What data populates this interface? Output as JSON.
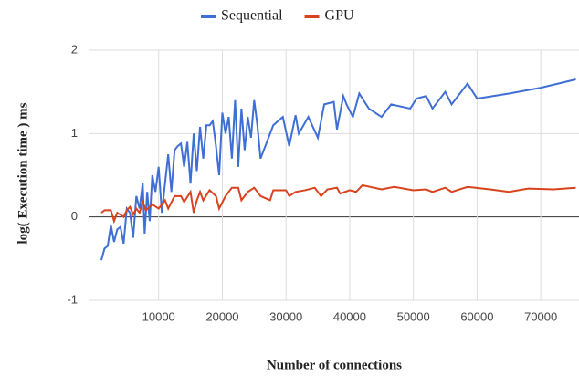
{
  "chart_data": {
    "type": "line",
    "x_label": "Number of connections",
    "y_label": "log( Execution time ) ms",
    "xlim": [
      -1000,
      76000
    ],
    "xticks": [
      10000,
      20000,
      30000,
      40000,
      50000,
      60000,
      70000
    ],
    "ylim": [
      -1,
      2
    ],
    "yticks": [
      -1,
      0,
      1,
      2
    ],
    "grid": true,
    "legend": "top",
    "series": [
      {
        "name": "Sequential",
        "color": "#3f6fd4",
        "x": [
          1000,
          1500,
          2000,
          2500,
          3000,
          3500,
          4000,
          4500,
          5000,
          5500,
          6000,
          6500,
          7000,
          7500,
          7800,
          8200,
          8600,
          9000,
          9500,
          10000,
          10500,
          11000,
          11500,
          12000,
          12500,
          13000,
          13500,
          14000,
          14500,
          15000,
          15500,
          16000,
          16500,
          17000,
          17500,
          18000,
          18500,
          19000,
          19500,
          20000,
          20500,
          21000,
          21500,
          22000,
          22500,
          23000,
          23500,
          24000,
          24500,
          25000,
          25500,
          26000,
          27000,
          28000,
          29500,
          30500,
          31500,
          32000,
          33500,
          35000,
          36000,
          37500,
          38000,
          39000,
          39500,
          40500,
          41500,
          43000,
          45000,
          46500,
          49500,
          50500,
          52000,
          53000,
          55000,
          56000,
          58500,
          60000,
          65000,
          70000,
          75500
        ],
        "values": [
          -0.52,
          -0.38,
          -0.35,
          -0.1,
          -0.3,
          -0.15,
          -0.12,
          -0.32,
          0.1,
          0.05,
          -0.25,
          0.25,
          0.1,
          0.4,
          -0.2,
          0.3,
          -0.05,
          0.5,
          0.3,
          0.6,
          0.05,
          0.4,
          0.75,
          0.3,
          0.8,
          0.85,
          0.88,
          0.6,
          0.9,
          0.4,
          1.0,
          0.55,
          1.08,
          0.7,
          1.1,
          1.1,
          1.15,
          0.85,
          0.5,
          1.25,
          1.0,
          1.2,
          0.7,
          1.4,
          0.6,
          1.3,
          0.8,
          1.2,
          0.95,
          1.4,
          1.1,
          0.7,
          0.9,
          1.1,
          1.2,
          0.85,
          1.22,
          1.0,
          1.2,
          0.95,
          1.35,
          1.38,
          1.05,
          1.45,
          1.35,
          1.2,
          1.48,
          1.3,
          1.2,
          1.35,
          1.3,
          1.42,
          1.45,
          1.3,
          1.5,
          1.35,
          1.6,
          1.42,
          1.48,
          1.55,
          1.65
        ]
      },
      {
        "name": "GPU",
        "color": "#d8431e",
        "x": [
          1000,
          1500,
          2500,
          3000,
          3500,
          4500,
          5000,
          5500,
          6000,
          6500,
          7000,
          7500,
          8000,
          9000,
          10000,
          11000,
          11500,
          12500,
          13500,
          14000,
          15000,
          15500,
          16000,
          16500,
          17000,
          18000,
          19000,
          19500,
          20500,
          21500,
          22500,
          23000,
          24000,
          25000,
          26000,
          27500,
          28000,
          30000,
          30500,
          31500,
          33000,
          34500,
          35500,
          36500,
          38000,
          38500,
          40000,
          41000,
          42000,
          45000,
          47000,
          50000,
          52000,
          53000,
          55000,
          56000,
          58500,
          62000,
          65000,
          68000,
          72000,
          75500
        ],
        "values": [
          0.05,
          0.08,
          0.08,
          -0.05,
          0.05,
          0.0,
          0.08,
          0.12,
          0.03,
          0.1,
          0.05,
          0.18,
          0.08,
          0.15,
          0.1,
          0.2,
          0.1,
          0.25,
          0.25,
          0.18,
          0.3,
          0.05,
          0.2,
          0.3,
          0.2,
          0.32,
          0.25,
          0.1,
          0.25,
          0.35,
          0.35,
          0.2,
          0.3,
          0.35,
          0.25,
          0.2,
          0.32,
          0.32,
          0.25,
          0.3,
          0.32,
          0.35,
          0.25,
          0.33,
          0.35,
          0.28,
          0.32,
          0.3,
          0.38,
          0.33,
          0.36,
          0.32,
          0.33,
          0.3,
          0.35,
          0.3,
          0.36,
          0.33,
          0.3,
          0.34,
          0.33,
          0.35
        ]
      }
    ]
  }
}
